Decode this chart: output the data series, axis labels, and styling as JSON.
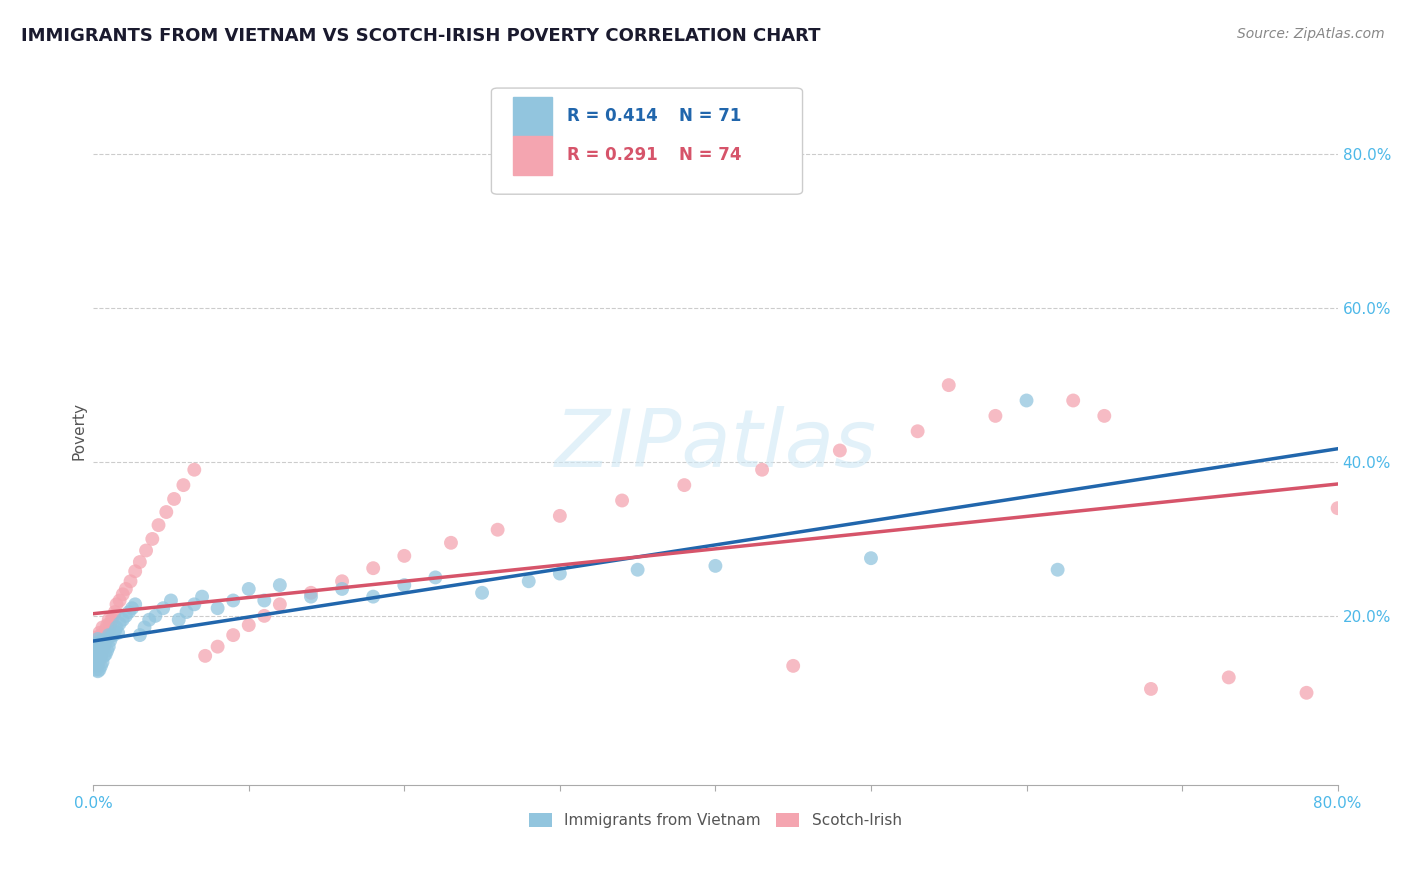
{
  "title": "IMMIGRANTS FROM VIETNAM VS SCOTCH-IRISH POVERTY CORRELATION CHART",
  "source": "Source: ZipAtlas.com",
  "ylabel": "Poverty",
  "xlim": [
    0.0,
    0.8
  ],
  "ylim": [
    -0.02,
    0.9
  ],
  "legend_r1": "R = 0.414",
  "legend_n1": "N = 71",
  "legend_r2": "R = 0.291",
  "legend_n2": "N = 74",
  "series1_color": "#92c5de",
  "series2_color": "#f4a5b0",
  "line1_color": "#2166ac",
  "line2_color": "#d6546a",
  "background_color": "#ffffff",
  "tick_color": "#4db8e8",
  "title_fontsize": 13,
  "axis_label_fontsize": 11,
  "tick_fontsize": 11,
  "vietnam_x": [
    0.001,
    0.001,
    0.001,
    0.002,
    0.002,
    0.002,
    0.002,
    0.003,
    0.003,
    0.003,
    0.003,
    0.003,
    0.004,
    0.004,
    0.004,
    0.004,
    0.005,
    0.005,
    0.005,
    0.005,
    0.006,
    0.006,
    0.006,
    0.007,
    0.007,
    0.008,
    0.008,
    0.009,
    0.009,
    0.01,
    0.01,
    0.011,
    0.012,
    0.013,
    0.014,
    0.015,
    0.016,
    0.017,
    0.019,
    0.021,
    0.023,
    0.025,
    0.027,
    0.03,
    0.033,
    0.036,
    0.04,
    0.045,
    0.05,
    0.055,
    0.06,
    0.065,
    0.07,
    0.08,
    0.09,
    0.1,
    0.11,
    0.12,
    0.14,
    0.16,
    0.18,
    0.2,
    0.22,
    0.25,
    0.28,
    0.3,
    0.35,
    0.4,
    0.5,
    0.6,
    0.62
  ],
  "vietnam_y": [
    0.135,
    0.15,
    0.16,
    0.13,
    0.145,
    0.155,
    0.165,
    0.128,
    0.14,
    0.15,
    0.16,
    0.17,
    0.13,
    0.145,
    0.155,
    0.165,
    0.135,
    0.148,
    0.158,
    0.168,
    0.14,
    0.155,
    0.165,
    0.148,
    0.162,
    0.15,
    0.165,
    0.155,
    0.17,
    0.16,
    0.175,
    0.168,
    0.175,
    0.175,
    0.18,
    0.185,
    0.178,
    0.19,
    0.195,
    0.2,
    0.205,
    0.21,
    0.215,
    0.175,
    0.185,
    0.195,
    0.2,
    0.21,
    0.22,
    0.195,
    0.205,
    0.215,
    0.225,
    0.21,
    0.22,
    0.235,
    0.22,
    0.24,
    0.225,
    0.235,
    0.225,
    0.24,
    0.25,
    0.23,
    0.245,
    0.255,
    0.26,
    0.265,
    0.275,
    0.48,
    0.26
  ],
  "scotch_x": [
    0.001,
    0.001,
    0.001,
    0.002,
    0.002,
    0.002,
    0.002,
    0.003,
    0.003,
    0.003,
    0.003,
    0.004,
    0.004,
    0.004,
    0.004,
    0.005,
    0.005,
    0.005,
    0.006,
    0.006,
    0.006,
    0.007,
    0.007,
    0.008,
    0.008,
    0.009,
    0.009,
    0.01,
    0.01,
    0.011,
    0.012,
    0.013,
    0.014,
    0.015,
    0.017,
    0.019,
    0.021,
    0.024,
    0.027,
    0.03,
    0.034,
    0.038,
    0.042,
    0.047,
    0.052,
    0.058,
    0.065,
    0.072,
    0.08,
    0.09,
    0.1,
    0.11,
    0.12,
    0.14,
    0.16,
    0.18,
    0.2,
    0.23,
    0.26,
    0.3,
    0.34,
    0.38,
    0.43,
    0.48,
    0.53,
    0.58,
    0.63,
    0.68,
    0.73,
    0.78,
    0.8,
    0.65,
    0.55,
    0.45
  ],
  "scotch_y": [
    0.145,
    0.158,
    0.168,
    0.138,
    0.152,
    0.162,
    0.172,
    0.135,
    0.148,
    0.158,
    0.168,
    0.142,
    0.155,
    0.165,
    0.178,
    0.148,
    0.162,
    0.175,
    0.155,
    0.17,
    0.185,
    0.16,
    0.175,
    0.168,
    0.182,
    0.172,
    0.188,
    0.18,
    0.195,
    0.188,
    0.195,
    0.2,
    0.205,
    0.215,
    0.22,
    0.228,
    0.235,
    0.245,
    0.258,
    0.27,
    0.285,
    0.3,
    0.318,
    0.335,
    0.352,
    0.37,
    0.39,
    0.148,
    0.16,
    0.175,
    0.188,
    0.2,
    0.215,
    0.23,
    0.245,
    0.262,
    0.278,
    0.295,
    0.312,
    0.33,
    0.35,
    0.37,
    0.39,
    0.415,
    0.44,
    0.46,
    0.48,
    0.105,
    0.12,
    0.1,
    0.34,
    0.46,
    0.5,
    0.135
  ]
}
